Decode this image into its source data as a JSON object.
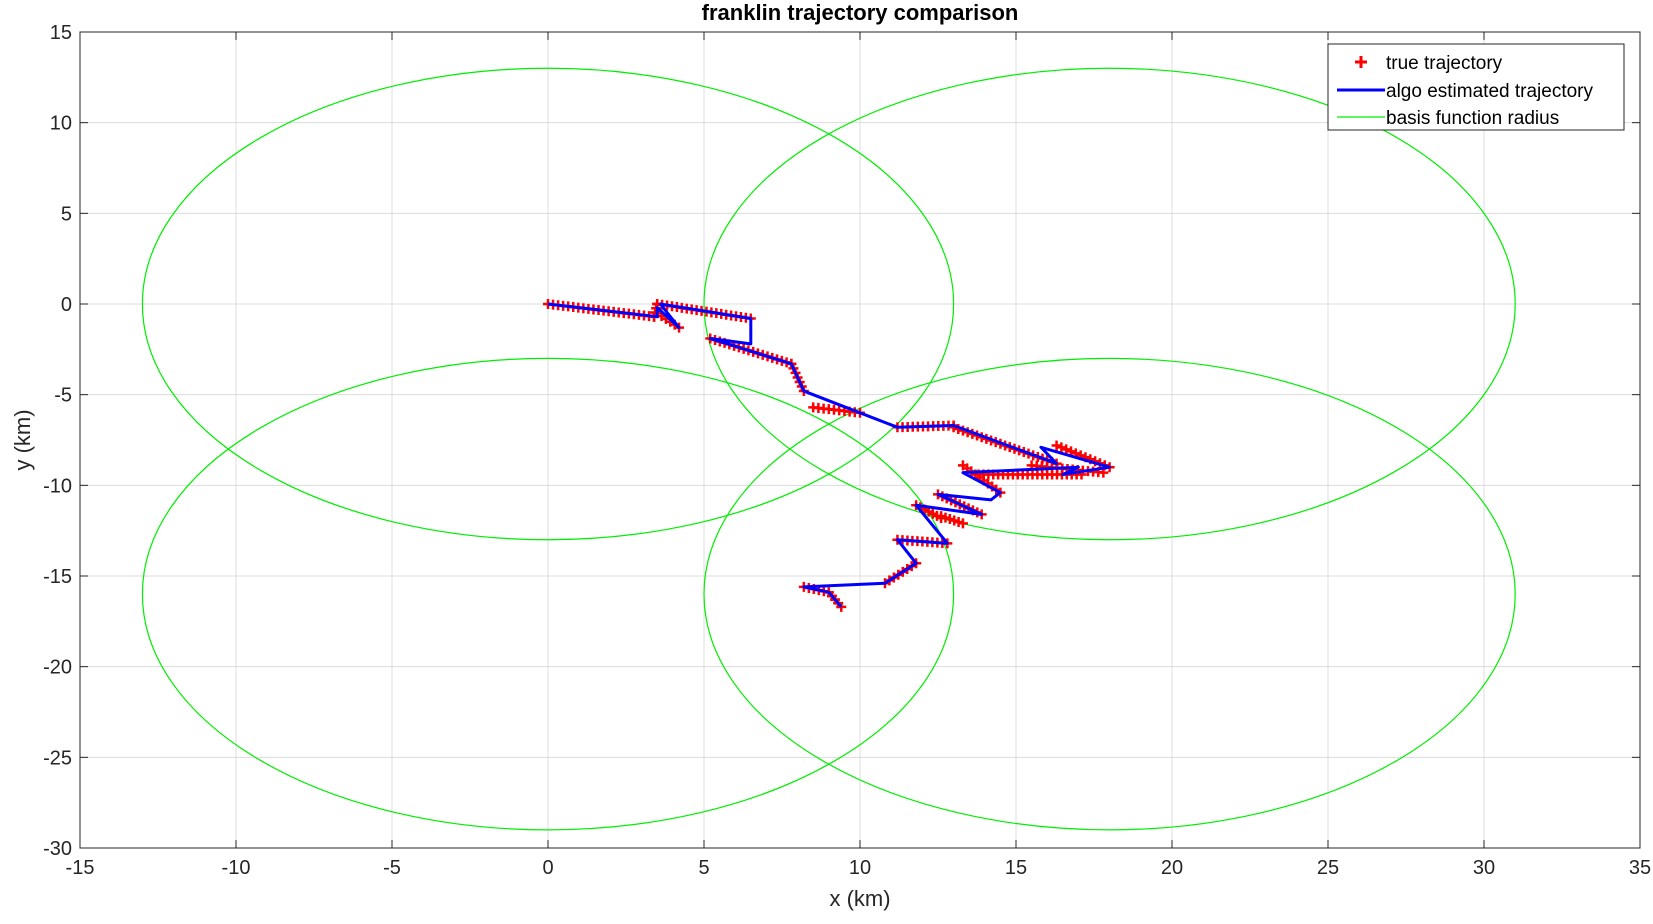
{
  "chart_data": {
    "type": "line",
    "title": "franklin trajectory comparison",
    "xlabel": "x (km)",
    "ylabel": "y (km)",
    "xlim": [
      -15,
      35
    ],
    "ylim": [
      -30,
      15
    ],
    "xticks": [
      -15,
      -10,
      -5,
      0,
      5,
      10,
      15,
      20,
      25,
      30,
      35
    ],
    "yticks": [
      -30,
      -25,
      -20,
      -15,
      -10,
      -5,
      0,
      5,
      10,
      15
    ],
    "grid": true,
    "legend_position": "top-right",
    "legend": [
      "true trajectory",
      "algo estimated trajectory",
      "basis function radius"
    ],
    "colors": {
      "true": "#ff0000",
      "estimated": "#0000ff",
      "basis": "#00ee00",
      "grid": "#dcdcdc",
      "axis": "#262626"
    },
    "series": [
      {
        "name": "true trajectory",
        "marker": "+",
        "segments": [
          [
            [
              0,
              0
            ],
            [
              3.4,
              -0.7
            ],
            [
              3.5,
              0
            ],
            [
              6.5,
              -0.8
            ]
          ],
          [
            [
              3.5,
              -0.5
            ],
            [
              4.2,
              -1.3
            ]
          ],
          [
            [
              5.2,
              -1.9
            ],
            [
              7.8,
              -3.3
            ],
            [
              8.2,
              -4.8
            ]
          ],
          [
            [
              8.5,
              -5.7
            ],
            [
              10,
              -6
            ]
          ],
          [
            [
              11.2,
              -6.8
            ],
            [
              13,
              -6.7
            ]
          ],
          [
            [
              13,
              -6.8
            ],
            [
              16.3,
              -8.8
            ]
          ],
          [
            [
              16.3,
              -7.8
            ],
            [
              18,
              -9
            ]
          ],
          [
            [
              15.5,
              -8.9
            ],
            [
              17.8,
              -9.3
            ]
          ],
          [
            [
              13.3,
              -8.9
            ],
            [
              14.5,
              -10.4
            ]
          ],
          [
            [
              13.8,
              -9.4
            ],
            [
              17.1,
              -9.4
            ]
          ],
          [
            [
              12.5,
              -10.5
            ],
            [
              13.9,
              -11.6
            ]
          ],
          [
            [
              11.8,
              -11.1
            ],
            [
              12.6,
              -11.8
            ]
          ],
          [
            [
              12.6,
              -11.7
            ],
            [
              13.3,
              -12.1
            ]
          ],
          [
            [
              11.2,
              -13
            ],
            [
              12.8,
              -13.2
            ]
          ],
          [
            [
              10.8,
              -15.4
            ],
            [
              11.8,
              -14.3
            ]
          ],
          [
            [
              8.2,
              -15.6
            ],
            [
              9,
              -15.9
            ],
            [
              9.4,
              -16.7
            ]
          ]
        ]
      },
      {
        "name": "algo estimated trajectory",
        "x": [
          0,
          3.5,
          3.5,
          4.2,
          3.6,
          6.5,
          6.5,
          5.2,
          7.8,
          8.2,
          10,
          11.2,
          13,
          16.3,
          15.8,
          18,
          16.5,
          17,
          13.3,
          14.5,
          14.2,
          12.5,
          13.9,
          11.8,
          12.8,
          11.2,
          11.8,
          10.8,
          8.2,
          9,
          9.4
        ],
        "y": [
          0,
          -0.7,
          -0.2,
          -1.3,
          0,
          -0.8,
          -2.2,
          -1.9,
          -3.3,
          -4.8,
          -6,
          -6.8,
          -6.7,
          -8.8,
          -7.9,
          -9,
          -9.4,
          -9,
          -9.3,
          -10.4,
          -10.8,
          -10.5,
          -11.6,
          -11.1,
          -13.2,
          -13,
          -14.3,
          -15.4,
          -15.6,
          -15.9,
          -16.7
        ]
      },
      {
        "name": "basis function radius",
        "circles": [
          {
            "cx": 0,
            "cy": 0,
            "r": 13
          },
          {
            "cx": 18,
            "cy": 0,
            "r": 13
          },
          {
            "cx": 0,
            "cy": -16,
            "r": 13
          },
          {
            "cx": 18,
            "cy": -16,
            "r": 13
          }
        ]
      }
    ]
  }
}
